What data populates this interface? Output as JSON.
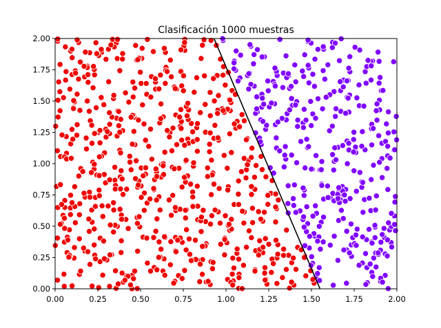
{
  "chart_data": {
    "type": "scatter",
    "title": "Clasificación 1000 muestras",
    "xlabel": "",
    "ylabel": "",
    "xlim": [
      0.0,
      2.0
    ],
    "ylim": [
      0.0,
      2.0
    ],
    "grid": false,
    "legend": "none",
    "x_ticks": [
      "0.00",
      "0.25",
      "0.50",
      "0.75",
      "1.00",
      "1.25",
      "1.50",
      "1.75",
      "2.00"
    ],
    "y_ticks": [
      "0.00",
      "0.25",
      "0.50",
      "0.75",
      "1.00",
      "1.25",
      "1.50",
      "1.75",
      "2.00"
    ],
    "sample_count": 1000,
    "boundary_line": {
      "x": [
        0.93,
        1.55
      ],
      "y": [
        2.0,
        0.0
      ],
      "color": "#000000"
    },
    "class_colors": {
      "left": "#ee0000",
      "right": "#8000ff"
    },
    "marker_edge": "#ffffff",
    "random_seed": 7
  }
}
